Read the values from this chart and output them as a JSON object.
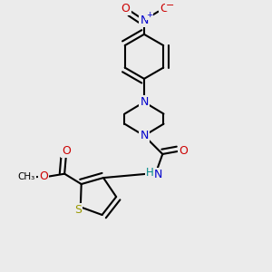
{
  "bg_color": "#ebebeb",
  "atom_colors": {
    "C": "#000000",
    "N": "#0000cc",
    "O": "#cc0000",
    "S": "#999900",
    "H": "#008888"
  },
  "bond_color": "#000000",
  "bond_width": 1.5,
  "dbo": 0.018,
  "fig_size": [
    3.0,
    3.0
  ],
  "dpi": 100
}
